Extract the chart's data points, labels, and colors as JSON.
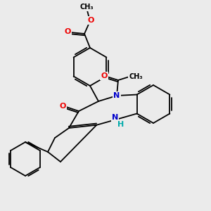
{
  "bg_color": "#ebebeb",
  "atom_colors": {
    "C": "#000000",
    "N": "#0000cc",
    "O": "#ee0000",
    "H": "#00aaaa"
  },
  "lw": 1.3,
  "fs": 8.0,
  "fs_small": 7.0
}
